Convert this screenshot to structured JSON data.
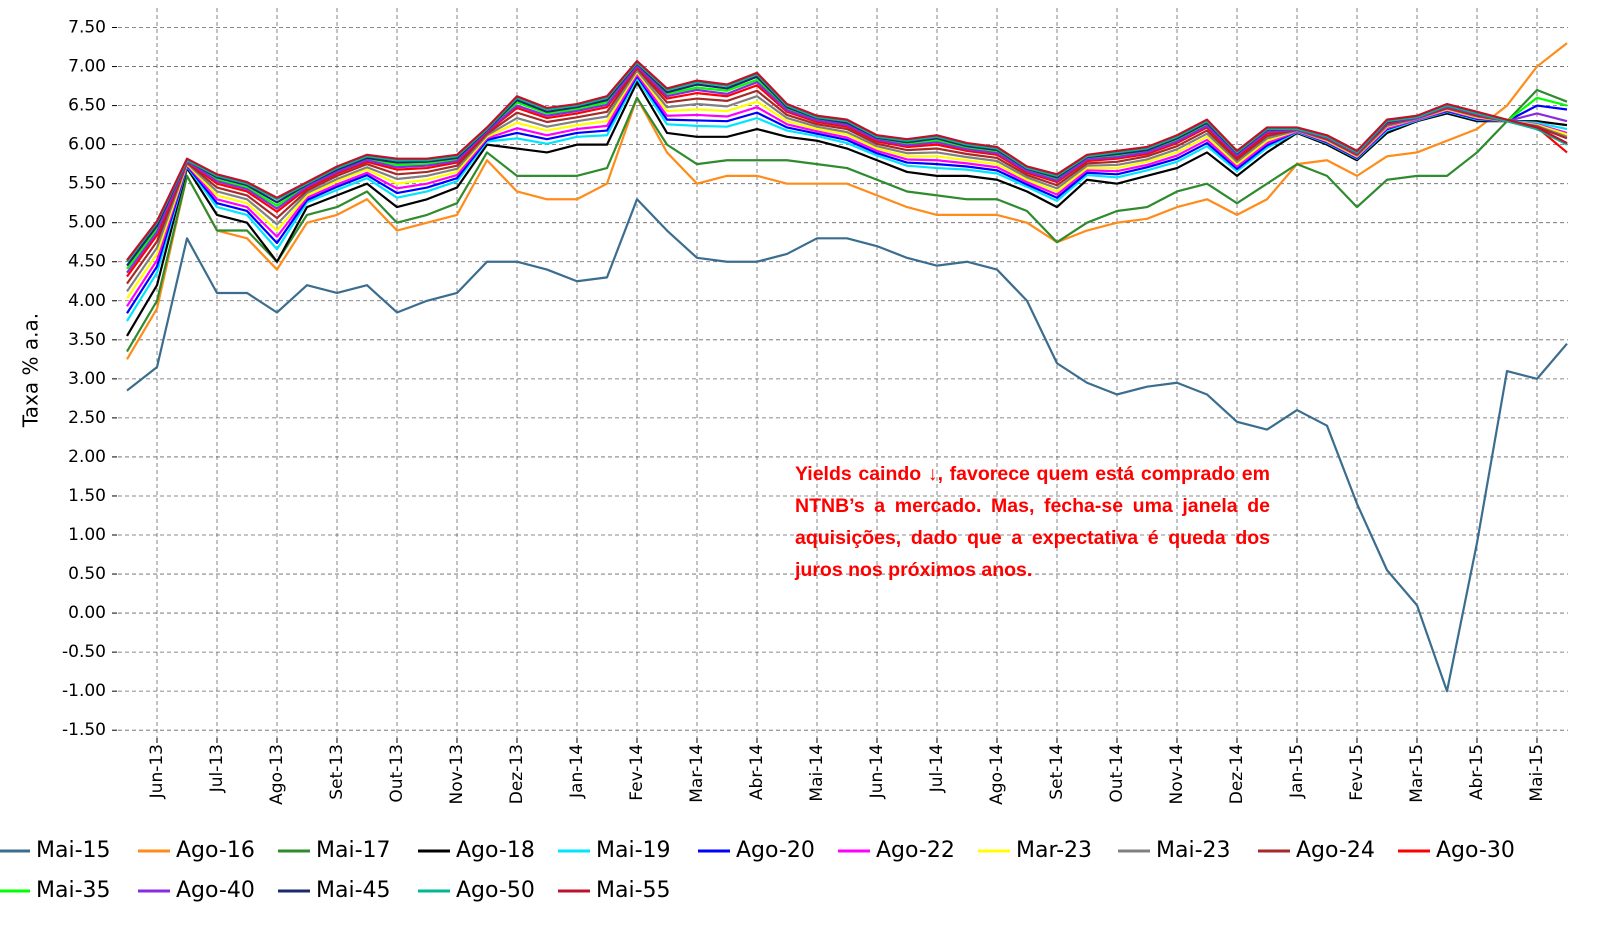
{
  "chart_data": {
    "type": "line",
    "y_label": "Taxa % a.a.",
    "grid": true,
    "annotation": "Yields caindo ↓, favorece quem está comprado em NTNB’s a mercado. Mas, fecha-se uma janela de aquisições, dado que a expectativa é queda dos juros nos próximos anos.",
    "ylim": [
      -1.6,
      7.75
    ],
    "yticks": [
      {
        "value": 7.5,
        "label": "7.50"
      },
      {
        "value": 7,
        "label": "7.00"
      },
      {
        "value": 6.5,
        "label": "6.50"
      },
      {
        "value": 6,
        "label": "6.00"
      },
      {
        "value": 5.5,
        "label": "5.50"
      },
      {
        "value": 5,
        "label": "5.00"
      },
      {
        "value": 4.5,
        "label": "4.50"
      },
      {
        "value": 4,
        "label": "4.00"
      },
      {
        "value": 3.5,
        "label": "3.50"
      },
      {
        "value": 3,
        "label": "3.00"
      },
      {
        "value": 2.5,
        "label": "2.50"
      },
      {
        "value": 2,
        "label": "2.00"
      },
      {
        "value": 1.5,
        "label": "1.50"
      },
      {
        "value": 1,
        "label": "1.00"
      },
      {
        "value": 0.5,
        "label": "0.50"
      },
      {
        "value": 0,
        "label": "0.00"
      },
      {
        "value": -0.5,
        "label": "-0.50"
      },
      {
        "value": -1,
        "label": "-1.00"
      },
      {
        "value": -1.5,
        "label": "-1.50"
      }
    ],
    "categories": [
      null,
      "Jun-13",
      null,
      "Jul-13",
      null,
      "Ago-13",
      null,
      "Set-13",
      null,
      "Out-13",
      null,
      "Nov-13",
      null,
      "Dez-13",
      null,
      "Jan-14",
      null,
      "Fev-14",
      null,
      "Mar-14",
      null,
      "Abr-14",
      null,
      "Mai-14",
      null,
      "Jun-14",
      null,
      "Jul-14",
      null,
      "Ago-14",
      null,
      "Set-14",
      null,
      "Out-14",
      null,
      "Nov-14",
      null,
      "Dez-14",
      null,
      "Jan-15",
      null,
      "Fev-15",
      null,
      "Mar-15",
      null,
      "Abr-15",
      null,
      "Mai-15",
      null
    ],
    "series": [
      {
        "name": "Mai-15",
        "color": "#3b6d8e",
        "values": [
          2.85,
          3.15,
          4.8,
          4.1,
          4.1,
          3.85,
          4.2,
          4.1,
          4.2,
          3.85,
          4.0,
          4.1,
          4.5,
          4.5,
          4.4,
          4.25,
          4.3,
          5.3,
          4.9,
          4.55,
          4.5,
          4.5,
          4.6,
          4.8,
          4.8,
          4.7,
          4.55,
          4.45,
          4.5,
          4.4,
          4.0,
          3.2,
          2.95,
          2.8,
          2.9,
          2.95,
          2.8,
          2.45,
          2.35,
          2.6,
          2.4,
          1.4,
          0.55,
          0.1,
          -1.0,
          0.9,
          3.1,
          3.0,
          3.45
        ]
      },
      {
        "name": "Ago-16",
        "color": "#ff8c1a",
        "values": [
          3.25,
          3.9,
          5.6,
          4.9,
          4.8,
          4.4,
          5.0,
          5.1,
          5.3,
          4.9,
          5.0,
          5.1,
          5.8,
          5.4,
          5.3,
          5.3,
          5.5,
          6.6,
          5.9,
          5.5,
          5.6,
          5.6,
          5.5,
          5.5,
          5.5,
          5.35,
          5.2,
          5.1,
          5.1,
          5.1,
          5.0,
          4.75,
          4.9,
          5.0,
          5.05,
          5.2,
          5.3,
          5.1,
          5.3,
          5.75,
          5.8,
          5.6,
          5.85,
          5.9,
          6.05,
          6.2,
          6.5,
          7.0,
          7.3
        ]
      },
      {
        "name": "Mai-17",
        "color": "#2e8b2e",
        "values": [
          3.35,
          4.0,
          5.6,
          4.9,
          4.9,
          4.5,
          5.1,
          5.2,
          5.4,
          5.0,
          5.1,
          5.25,
          5.9,
          5.6,
          5.6,
          5.6,
          5.7,
          6.6,
          6.0,
          5.75,
          5.8,
          5.8,
          5.8,
          5.75,
          5.7,
          5.55,
          5.4,
          5.35,
          5.3,
          5.3,
          5.15,
          4.75,
          5.0,
          5.15,
          5.2,
          5.4,
          5.5,
          5.25,
          5.5,
          5.75,
          5.6,
          5.2,
          5.55,
          5.6,
          5.6,
          5.9,
          6.3,
          6.7,
          6.55
        ]
      },
      {
        "name": "Ago-18",
        "color": "#000000",
        "values": [
          3.55,
          4.2,
          5.7,
          5.1,
          5.0,
          4.5,
          5.2,
          5.35,
          5.5,
          5.2,
          5.3,
          5.45,
          6.0,
          5.95,
          5.9,
          6.0,
          6.0,
          6.8,
          6.15,
          6.1,
          6.1,
          6.2,
          6.1,
          6.05,
          5.95,
          5.8,
          5.65,
          5.6,
          5.6,
          5.55,
          5.4,
          5.2,
          5.55,
          5.5,
          5.6,
          5.7,
          5.9,
          5.6,
          5.9,
          6.15,
          6.0,
          5.8,
          6.15,
          6.3,
          6.4,
          6.3,
          6.3,
          6.3,
          6.25
        ]
      },
      {
        "name": "Mai-19",
        "color": "#00e5ff",
        "values": [
          3.74,
          4.36,
          5.72,
          5.2,
          5.1,
          4.66,
          5.26,
          5.42,
          5.57,
          5.32,
          5.4,
          5.53,
          6.04,
          6.08,
          6.01,
          6.1,
          6.12,
          6.85,
          6.26,
          6.24,
          6.23,
          6.34,
          6.18,
          6.11,
          6.02,
          5.86,
          5.73,
          5.7,
          5.68,
          5.63,
          5.46,
          5.28,
          5.61,
          5.58,
          5.67,
          5.78,
          5.98,
          5.66,
          5.96,
          6.16,
          6.02,
          5.82,
          6.18,
          6.31,
          6.42,
          6.32,
          6.3,
          6.28,
          6.2
        ]
      },
      {
        "name": "Ago-20",
        "color": "#0000ff",
        "values": [
          3.84,
          4.44,
          5.73,
          5.25,
          5.15,
          4.74,
          5.29,
          5.46,
          5.61,
          5.38,
          5.45,
          5.57,
          6.06,
          6.15,
          6.07,
          6.15,
          6.18,
          6.88,
          6.32,
          6.31,
          6.3,
          6.41,
          6.22,
          6.14,
          6.06,
          5.89,
          5.77,
          5.75,
          5.72,
          5.67,
          5.49,
          5.32,
          5.64,
          5.62,
          5.71,
          5.82,
          6.02,
          5.69,
          5.99,
          6.17,
          6.03,
          5.83,
          6.2,
          6.32,
          6.43,
          6.33,
          6.3,
          6.5,
          6.45
        ]
      },
      {
        "name": "Ago-22",
        "color": "#ff00ff",
        "values": [
          3.93,
          4.52,
          5.74,
          5.3,
          5.2,
          4.82,
          5.32,
          5.49,
          5.64,
          5.44,
          5.5,
          5.61,
          6.08,
          6.21,
          6.12,
          6.2,
          6.24,
          6.9,
          6.37,
          6.38,
          6.36,
          6.48,
          6.26,
          6.17,
          6.09,
          5.92,
          5.81,
          5.8,
          5.76,
          5.71,
          5.52,
          5.36,
          5.67,
          5.66,
          5.74,
          5.86,
          6.06,
          5.72,
          6.02,
          6.17,
          6.04,
          5.84,
          6.21,
          6.32,
          6.44,
          6.34,
          6.3,
          6.26,
          6.15
        ]
      },
      {
        "name": "Mar-23",
        "color": "#ffff00",
        "values": [
          4.03,
          4.6,
          5.75,
          5.35,
          5.25,
          4.9,
          5.35,
          5.53,
          5.68,
          5.5,
          5.55,
          5.65,
          6.1,
          6.28,
          6.18,
          6.25,
          6.3,
          6.93,
          6.43,
          6.45,
          6.43,
          6.55,
          6.3,
          6.2,
          6.13,
          5.95,
          5.85,
          5.85,
          5.8,
          5.75,
          5.55,
          5.4,
          5.7,
          5.7,
          5.78,
          5.9,
          6.1,
          5.75,
          6.05,
          6.18,
          6.05,
          5.85,
          6.23,
          6.33,
          6.45,
          6.35,
          6.3,
          6.25,
          6.13
        ]
      },
      {
        "name": "Mai-23",
        "color": "#808080",
        "values": [
          4.12,
          4.68,
          5.76,
          5.4,
          5.3,
          4.98,
          5.38,
          5.56,
          5.71,
          5.56,
          5.6,
          5.69,
          6.12,
          6.34,
          6.23,
          6.3,
          6.36,
          6.95,
          6.48,
          6.52,
          6.49,
          6.62,
          6.34,
          6.23,
          6.16,
          5.98,
          5.89,
          5.9,
          5.84,
          5.79,
          5.58,
          5.44,
          5.73,
          5.74,
          5.81,
          5.94,
          6.14,
          5.78,
          6.08,
          6.18,
          6.06,
          5.86,
          6.24,
          6.33,
          6.46,
          6.36,
          6.3,
          6.24,
          6.1
        ]
      },
      {
        "name": "Ago-24",
        "color": "#a52a2a",
        "values": [
          4.22,
          4.76,
          5.77,
          5.45,
          5.35,
          5.06,
          5.41,
          5.6,
          5.75,
          5.62,
          5.65,
          5.73,
          6.14,
          6.41,
          6.29,
          6.35,
          6.42,
          6.98,
          6.54,
          6.59,
          6.56,
          6.69,
          6.38,
          6.26,
          6.2,
          6.01,
          5.93,
          5.95,
          5.88,
          5.83,
          5.61,
          5.48,
          5.76,
          5.78,
          5.85,
          5.98,
          6.18,
          5.81,
          6.11,
          6.19,
          6.07,
          5.87,
          6.26,
          6.34,
          6.47,
          6.37,
          6.3,
          6.23,
          6.08
        ]
      },
      {
        "name": "Ago-30",
        "color": "#ff0000",
        "values": [
          4.31,
          4.84,
          5.78,
          5.5,
          5.4,
          5.14,
          5.44,
          5.63,
          5.78,
          5.68,
          5.7,
          5.77,
          6.16,
          6.47,
          6.34,
          6.4,
          6.48,
          7.0,
          6.59,
          6.66,
          6.62,
          6.76,
          6.42,
          6.29,
          6.23,
          6.04,
          5.97,
          6.0,
          5.92,
          5.87,
          5.64,
          5.52,
          5.79,
          5.82,
          5.88,
          6.02,
          6.22,
          5.84,
          6.14,
          6.19,
          6.08,
          5.88,
          6.27,
          6.34,
          6.48,
          6.38,
          6.3,
          6.22,
          5.9
        ]
      },
      {
        "name": "Mai-35",
        "color": "#00ff00",
        "values": [
          4.41,
          4.92,
          5.79,
          5.55,
          5.45,
          5.22,
          5.47,
          5.67,
          5.82,
          5.74,
          5.75,
          5.81,
          6.18,
          6.54,
          6.4,
          6.45,
          6.54,
          7.03,
          6.65,
          6.73,
          6.69,
          6.83,
          6.46,
          6.32,
          6.27,
          6.07,
          6.01,
          6.05,
          5.96,
          5.91,
          5.67,
          5.56,
          5.82,
          5.86,
          5.92,
          6.06,
          6.26,
          5.87,
          6.17,
          6.2,
          6.09,
          5.89,
          6.29,
          6.35,
          6.49,
          6.39,
          6.3,
          6.6,
          6.5
        ]
      },
      {
        "name": "Ago-40",
        "color": "#8a2be2",
        "values": [
          4.36,
          4.88,
          5.79,
          5.53,
          5.43,
          5.18,
          5.46,
          5.65,
          5.8,
          5.71,
          5.73,
          5.79,
          6.17,
          6.5,
          6.37,
          6.43,
          6.51,
          7.01,
          6.62,
          6.7,
          6.65,
          6.8,
          6.44,
          6.31,
          6.25,
          6.06,
          5.99,
          6.03,
          5.94,
          5.89,
          5.66,
          5.54,
          5.81,
          5.84,
          5.9,
          6.04,
          6.24,
          5.86,
          6.16,
          6.19,
          6.09,
          5.89,
          6.28,
          6.34,
          6.49,
          6.39,
          6.3,
          6.4,
          6.3
        ]
      },
      {
        "name": "Mai-45",
        "color": "#1a2a6c",
        "values": [
          4.45,
          4.96,
          5.8,
          5.58,
          5.48,
          5.26,
          5.49,
          5.68,
          5.83,
          5.77,
          5.78,
          5.83,
          6.19,
          6.57,
          6.42,
          6.48,
          6.57,
          7.04,
          6.67,
          6.77,
          6.72,
          6.87,
          6.48,
          6.34,
          6.28,
          6.09,
          6.03,
          6.08,
          5.98,
          5.93,
          5.69,
          5.58,
          5.84,
          5.88,
          5.93,
          6.08,
          6.28,
          5.89,
          6.19,
          6.2,
          6.1,
          5.9,
          6.29,
          6.35,
          6.5,
          6.4,
          6.3,
          6.2,
          6.01
        ]
      },
      {
        "name": "Ago-50",
        "color": "#00b894",
        "values": [
          4.5,
          5.0,
          5.8,
          5.6,
          5.5,
          5.3,
          5.5,
          5.7,
          5.85,
          5.8,
          5.8,
          5.85,
          6.2,
          6.6,
          6.45,
          6.5,
          6.6,
          7.05,
          6.7,
          6.8,
          6.75,
          6.9,
          6.5,
          6.35,
          6.3,
          6.1,
          6.05,
          6.1,
          6.0,
          5.95,
          5.7,
          5.6,
          5.85,
          5.9,
          5.95,
          6.1,
          6.3,
          5.9,
          6.2,
          6.2,
          6.1,
          5.9,
          6.3,
          6.35,
          6.5,
          6.4,
          6.3,
          6.2,
          6.0
        ]
      },
      {
        "name": "Mai-55",
        "color": "#c0102a",
        "values": [
          4.52,
          5.02,
          5.82,
          5.62,
          5.52,
          5.32,
          5.52,
          5.72,
          5.87,
          5.82,
          5.82,
          5.87,
          6.22,
          6.62,
          6.47,
          6.52,
          6.62,
          7.07,
          6.72,
          6.82,
          6.77,
          6.92,
          6.52,
          6.37,
          6.32,
          6.12,
          6.07,
          6.12,
          6.02,
          5.97,
          5.72,
          5.62,
          5.87,
          5.92,
          5.97,
          6.12,
          6.32,
          5.92,
          6.22,
          6.22,
          6.12,
          5.92,
          6.32,
          6.37,
          6.52,
          6.42,
          6.32,
          6.22,
          6.02
        ]
      }
    ]
  }
}
